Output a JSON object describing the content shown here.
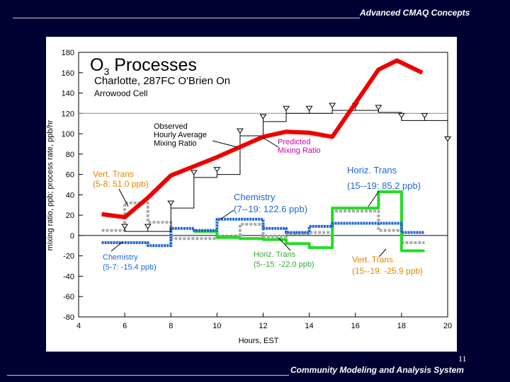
{
  "header": {
    "title": "Advanced CMAQ Concepts"
  },
  "footer": {
    "title": "Community Modeling and Analysis System",
    "slide_number": "11"
  },
  "colors": {
    "background": "#000033",
    "predicted": "#ee0000",
    "chemistry": "#1f66d6",
    "horiz_trans": "#22dd22",
    "vert_trans": "#aaaaaa",
    "observed": "#000000",
    "label_orange": "#dd8800",
    "label_blue": "#1f66d6",
    "label_magenta": "#cc00aa",
    "label_green": "#33aa33"
  },
  "chart_data": {
    "type": "line",
    "title": "O3 Processes",
    "title_main": "O",
    "title_sub": "3",
    "title_rest": " Processes",
    "subtitle": "Charlotte, 287FC  O'Brien On",
    "subtitle2": "Arrowood Cell",
    "xlabel": "Hours, EST",
    "ylabel": "mixing ratio, ppb; process rate, ppb/hr",
    "xlim": [
      4,
      20
    ],
    "ylim": [
      -80,
      180
    ],
    "xticks": [
      4,
      6,
      8,
      10,
      12,
      14,
      16,
      18,
      20
    ],
    "yticks": [
      -80,
      -60,
      -40,
      -20,
      0,
      20,
      40,
      60,
      80,
      100,
      120,
      140,
      160,
      180
    ],
    "reference_line_y": 120,
    "series": [
      {
        "name": "Predicted Mixing Ratio",
        "style": "line",
        "x": [
          5,
          6,
          7,
          8,
          9,
          10,
          11,
          12,
          13,
          14,
          15,
          16,
          17,
          17.8,
          18.9
        ],
        "y": [
          21,
          18,
          37,
          59,
          68,
          77,
          87,
          97,
          102,
          101,
          97,
          130,
          163,
          172,
          160
        ]
      },
      {
        "name": "Observed Hourly Average Mixing Ratio",
        "style": "step",
        "x": [
          6,
          7,
          8,
          9,
          10,
          11,
          12,
          13,
          14,
          15,
          16,
          17,
          18,
          19,
          20
        ],
        "y": [
          4,
          4,
          27,
          57,
          60,
          98,
          112,
          120,
          120,
          123,
          123,
          121,
          113,
          113,
          90
        ]
      },
      {
        "name": "Chemistry",
        "style": "step",
        "x": [
          5,
          7,
          8,
          9,
          10,
          11,
          12,
          13,
          14,
          15,
          16,
          17,
          18,
          19
        ],
        "y": [
          -7,
          -10,
          7,
          5,
          16,
          16,
          7,
          3,
          9,
          12,
          12,
          12,
          3,
          3
        ]
      },
      {
        "name": "Vert. Trans",
        "style": "step",
        "x": [
          5,
          6,
          7,
          8,
          9,
          10,
          11,
          12,
          13,
          14,
          15,
          16,
          17,
          18,
          19
        ],
        "y": [
          5,
          32,
          13,
          -3,
          -3,
          -1,
          11,
          -1,
          2,
          3,
          24,
          24,
          5,
          -7,
          -7
        ]
      },
      {
        "name": "Horiz. Trans",
        "style": "step",
        "x": [
          9,
          10,
          11,
          12,
          13,
          14,
          15,
          16,
          17,
          18,
          19
        ],
        "y": [
          4,
          -2,
          -3,
          -4,
          -8,
          -12,
          27,
          27,
          43,
          -15,
          -15
        ]
      }
    ],
    "annotations": {
      "observed": [
        "Observed",
        "Hourly Average",
        "Mixing Ratio"
      ],
      "predicted": [
        "Predicted",
        "Mixing Ratio"
      ],
      "vert_trans_early": [
        "Vert. Trans",
        "(5-8: 51.0 ppb)"
      ],
      "chemistry_day": [
        "Chemistry",
        "(7--19: 122.6 ppb)"
      ],
      "horiz_trans_late": [
        "Horiz. Trans",
        "(15--19:  85.2 ppb)"
      ],
      "chemistry_early": [
        "Chemistry",
        "(5-7: -15.4 ppb)"
      ],
      "horiz_trans_early": [
        "Horiz. Trans",
        "(5--15: -22.0 ppb)"
      ],
      "vert_trans_late": [
        "Vert. Trans",
        "(15--19: -25.9 ppb)"
      ]
    }
  }
}
